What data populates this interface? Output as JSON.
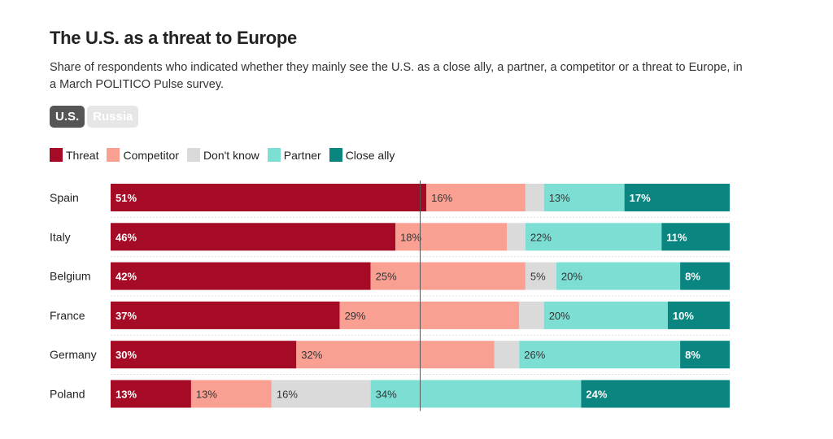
{
  "header": {
    "title": "The U.S. as a threat to Europe",
    "subtitle": "Share of respondents who indicated whether they mainly see the U.S. as a close ally, a partner, a competitor or a threat to Europe, in a March POLITICO Pulse survey."
  },
  "toggles": [
    {
      "label": "U.S.",
      "active": true
    },
    {
      "label": "Russia",
      "active": false
    }
  ],
  "chart_data": {
    "type": "bar",
    "stacked": true,
    "orientation": "horizontal",
    "title": "The U.S. as a threat to Europe",
    "xlim": [
      0,
      100
    ],
    "reference_line": 50,
    "legend_placement": "top-left",
    "categories": [
      "Spain",
      "Italy",
      "Belgium",
      "France",
      "Germany",
      "Poland"
    ],
    "series": [
      {
        "name": "Threat",
        "color": "#a50b24",
        "text": "#ffffff",
        "values": [
          51,
          46,
          42,
          37,
          30,
          13
        ],
        "labels": [
          "51%",
          "46%",
          "42%",
          "37%",
          "30%",
          "13%"
        ]
      },
      {
        "name": "Competitor",
        "color": "#f9a093",
        "text": "#333333",
        "values": [
          16,
          18,
          25,
          29,
          32,
          13
        ],
        "labels": [
          "16%",
          "18%",
          "25%",
          "29%",
          "32%",
          "13%"
        ]
      },
      {
        "name": "Don't know",
        "color": "#dadada",
        "text": "#333333",
        "values": [
          3,
          3,
          5,
          4,
          4,
          16
        ],
        "labels": [
          null,
          null,
          "5%",
          null,
          null,
          "16%"
        ]
      },
      {
        "name": "Partner",
        "color": "#7ddfd3",
        "text": "#333333",
        "values": [
          13,
          22,
          20,
          20,
          26,
          34
        ],
        "labels": [
          "13%",
          "22%",
          "20%",
          "20%",
          "26%",
          "34%"
        ]
      },
      {
        "name": "Close ally",
        "color": "#0a8580",
        "text": "#ffffff",
        "values": [
          17,
          11,
          8,
          10,
          8,
          24
        ],
        "labels": [
          "17%",
          "11%",
          "8%",
          "10%",
          "8%",
          "24%"
        ]
      }
    ]
  }
}
